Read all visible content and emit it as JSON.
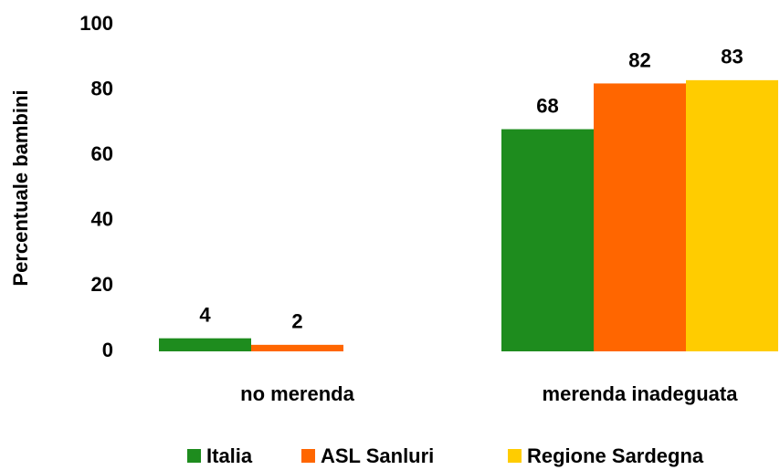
{
  "chart_data": {
    "type": "bar",
    "y_label": "Percentuale bambini",
    "categories": [
      "no merenda",
      "merenda inadeguata"
    ],
    "series": [
      {
        "name": "Italia",
        "color": "#1e8c1e",
        "values": [
          4,
          68
        ]
      },
      {
        "name": "ASL Sanluri",
        "color": "#ff6600",
        "values": [
          2,
          82
        ]
      },
      {
        "name": "Regione Sardegna",
        "color": "#ffcc00",
        "values": [
          null,
          83
        ]
      }
    ],
    "ylim": [
      0,
      100
    ],
    "yticks": [
      0,
      20,
      40,
      60,
      80,
      100
    ],
    "legend": "bottom"
  }
}
